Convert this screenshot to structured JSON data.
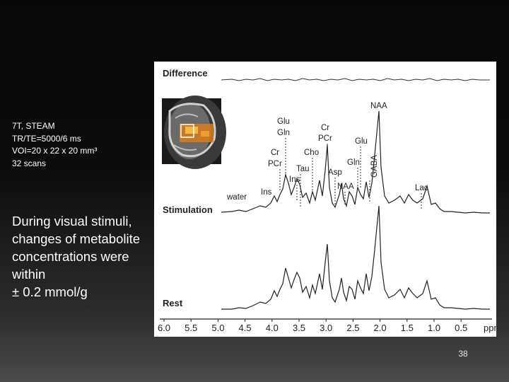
{
  "acquisition": {
    "field": "7T, STEAM",
    "timing": "TR/TE=5000/6 ms",
    "voi": "VOI=20 x 22 x 20 mm³",
    "scans": "32 scans"
  },
  "note": {
    "line1": "During visual stimuli,",
    "line2": "changes of metabolite",
    "line3": "concentrations were",
    "line4": "within",
    "line5": "± 0.2 mmol/g"
  },
  "figure": {
    "traces": {
      "difference": "Difference",
      "stimulation": "Stimulation",
      "rest": "Rest"
    },
    "peaks": {
      "water": "water",
      "ins_left": "Ins",
      "cr_pcr_left_1": "Cr",
      "cr_pcr_left_2": "PCr",
      "glu_gln_1": "Glu",
      "glu_gln_2": "Gln",
      "tau": "Tau",
      "ins_mid": "Ins",
      "cho": "Cho",
      "cr_pcr_mid_1": "Cr",
      "cr_pcr_mid_2": "PCr",
      "asp": "Asp",
      "naa_small": "NAA",
      "glu_right": "Glu",
      "gln_right": "Gln",
      "gaba": "GABA",
      "naa": "NAA",
      "lac": "Lac"
    },
    "axis": {
      "ticks": [
        "6.0",
        "5.5",
        "5.0",
        "4.5",
        "4.0",
        "3.5",
        "3.0",
        "2.5",
        "2.0",
        "1.5",
        "1.0",
        "0.5"
      ],
      "unit": "ppm"
    }
  },
  "slide_number": "38"
}
